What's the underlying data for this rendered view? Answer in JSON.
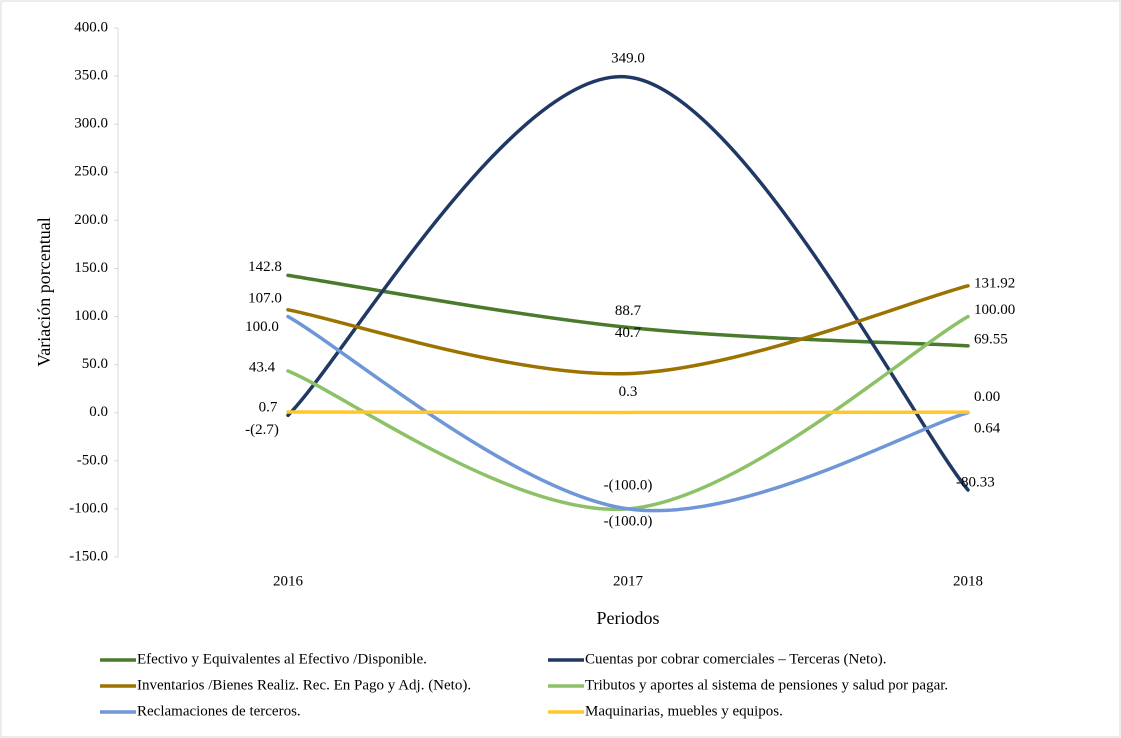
{
  "chart_data": {
    "type": "line",
    "y_label": "Variación porcentual",
    "x_label": "Periodos",
    "categories": [
      "2016",
      "2017",
      "2018"
    ],
    "ylim": [
      -150,
      400
    ],
    "yticks": [
      {
        "value": -150,
        "label": "-150.0"
      },
      {
        "value": -100,
        "label": "-100.0"
      },
      {
        "value": -50,
        "label": "-50.0"
      },
      {
        "value": 0,
        "label": "0.0"
      },
      {
        "value": 50,
        "label": "50.0"
      },
      {
        "value": 100,
        "label": "100.0"
      },
      {
        "value": 150,
        "label": "150.0"
      },
      {
        "value": 200,
        "label": "200.0"
      },
      {
        "value": 250,
        "label": "250.0"
      },
      {
        "value": 300,
        "label": "300.0"
      },
      {
        "value": 350,
        "label": "350.0"
      },
      {
        "value": 400,
        "label": "400.0"
      }
    ],
    "grid": false,
    "smooth": true,
    "legend": "bottom",
    "series": [
      {
        "name": "Efectivo y Equivalentes al Efectivo /Disponible.",
        "color": "#4a7a2c",
        "values": [
          142.8,
          88.7,
          69.55
        ],
        "value_labels": [
          "142.8",
          "88.7",
          "69.55"
        ]
      },
      {
        "name": "Cuentas por cobrar comerciales – Terceras (Neto).",
        "color": "#203864",
        "values": [
          -2.7,
          349.0,
          -80.33
        ],
        "value_labels": [
          "-(2.7)",
          "349.0",
          "-80.33"
        ]
      },
      {
        "name": "Inventarios /Bienes Realiz. Rec. En Pago y Adj. (Neto).",
        "color": "#9c7200",
        "values": [
          107.0,
          40.7,
          131.92
        ],
        "value_labels": [
          "107.0",
          "40.7",
          "131.92"
        ]
      },
      {
        "name": "Tributos y aportes al sistema de pensiones y salud por pagar.",
        "color": "#8cc167",
        "values": [
          43.4,
          -100.0,
          100.0
        ],
        "value_labels": [
          "43.4",
          "-(100.0)",
          "100.00"
        ]
      },
      {
        "name": "Reclamaciones de terceros.",
        "color": "#6f96d6",
        "values": [
          100.0,
          -100.0,
          0.0
        ],
        "value_labels": [
          "100.0",
          "-(100.0)",
          "0.00"
        ]
      },
      {
        "name": "Maquinarias, muebles y equipos.",
        "color": "#ffc72a",
        "values": [
          0.7,
          0.3,
          0.64
        ],
        "value_labels": [
          "0.7",
          "0.3",
          "0.64"
        ]
      }
    ]
  }
}
